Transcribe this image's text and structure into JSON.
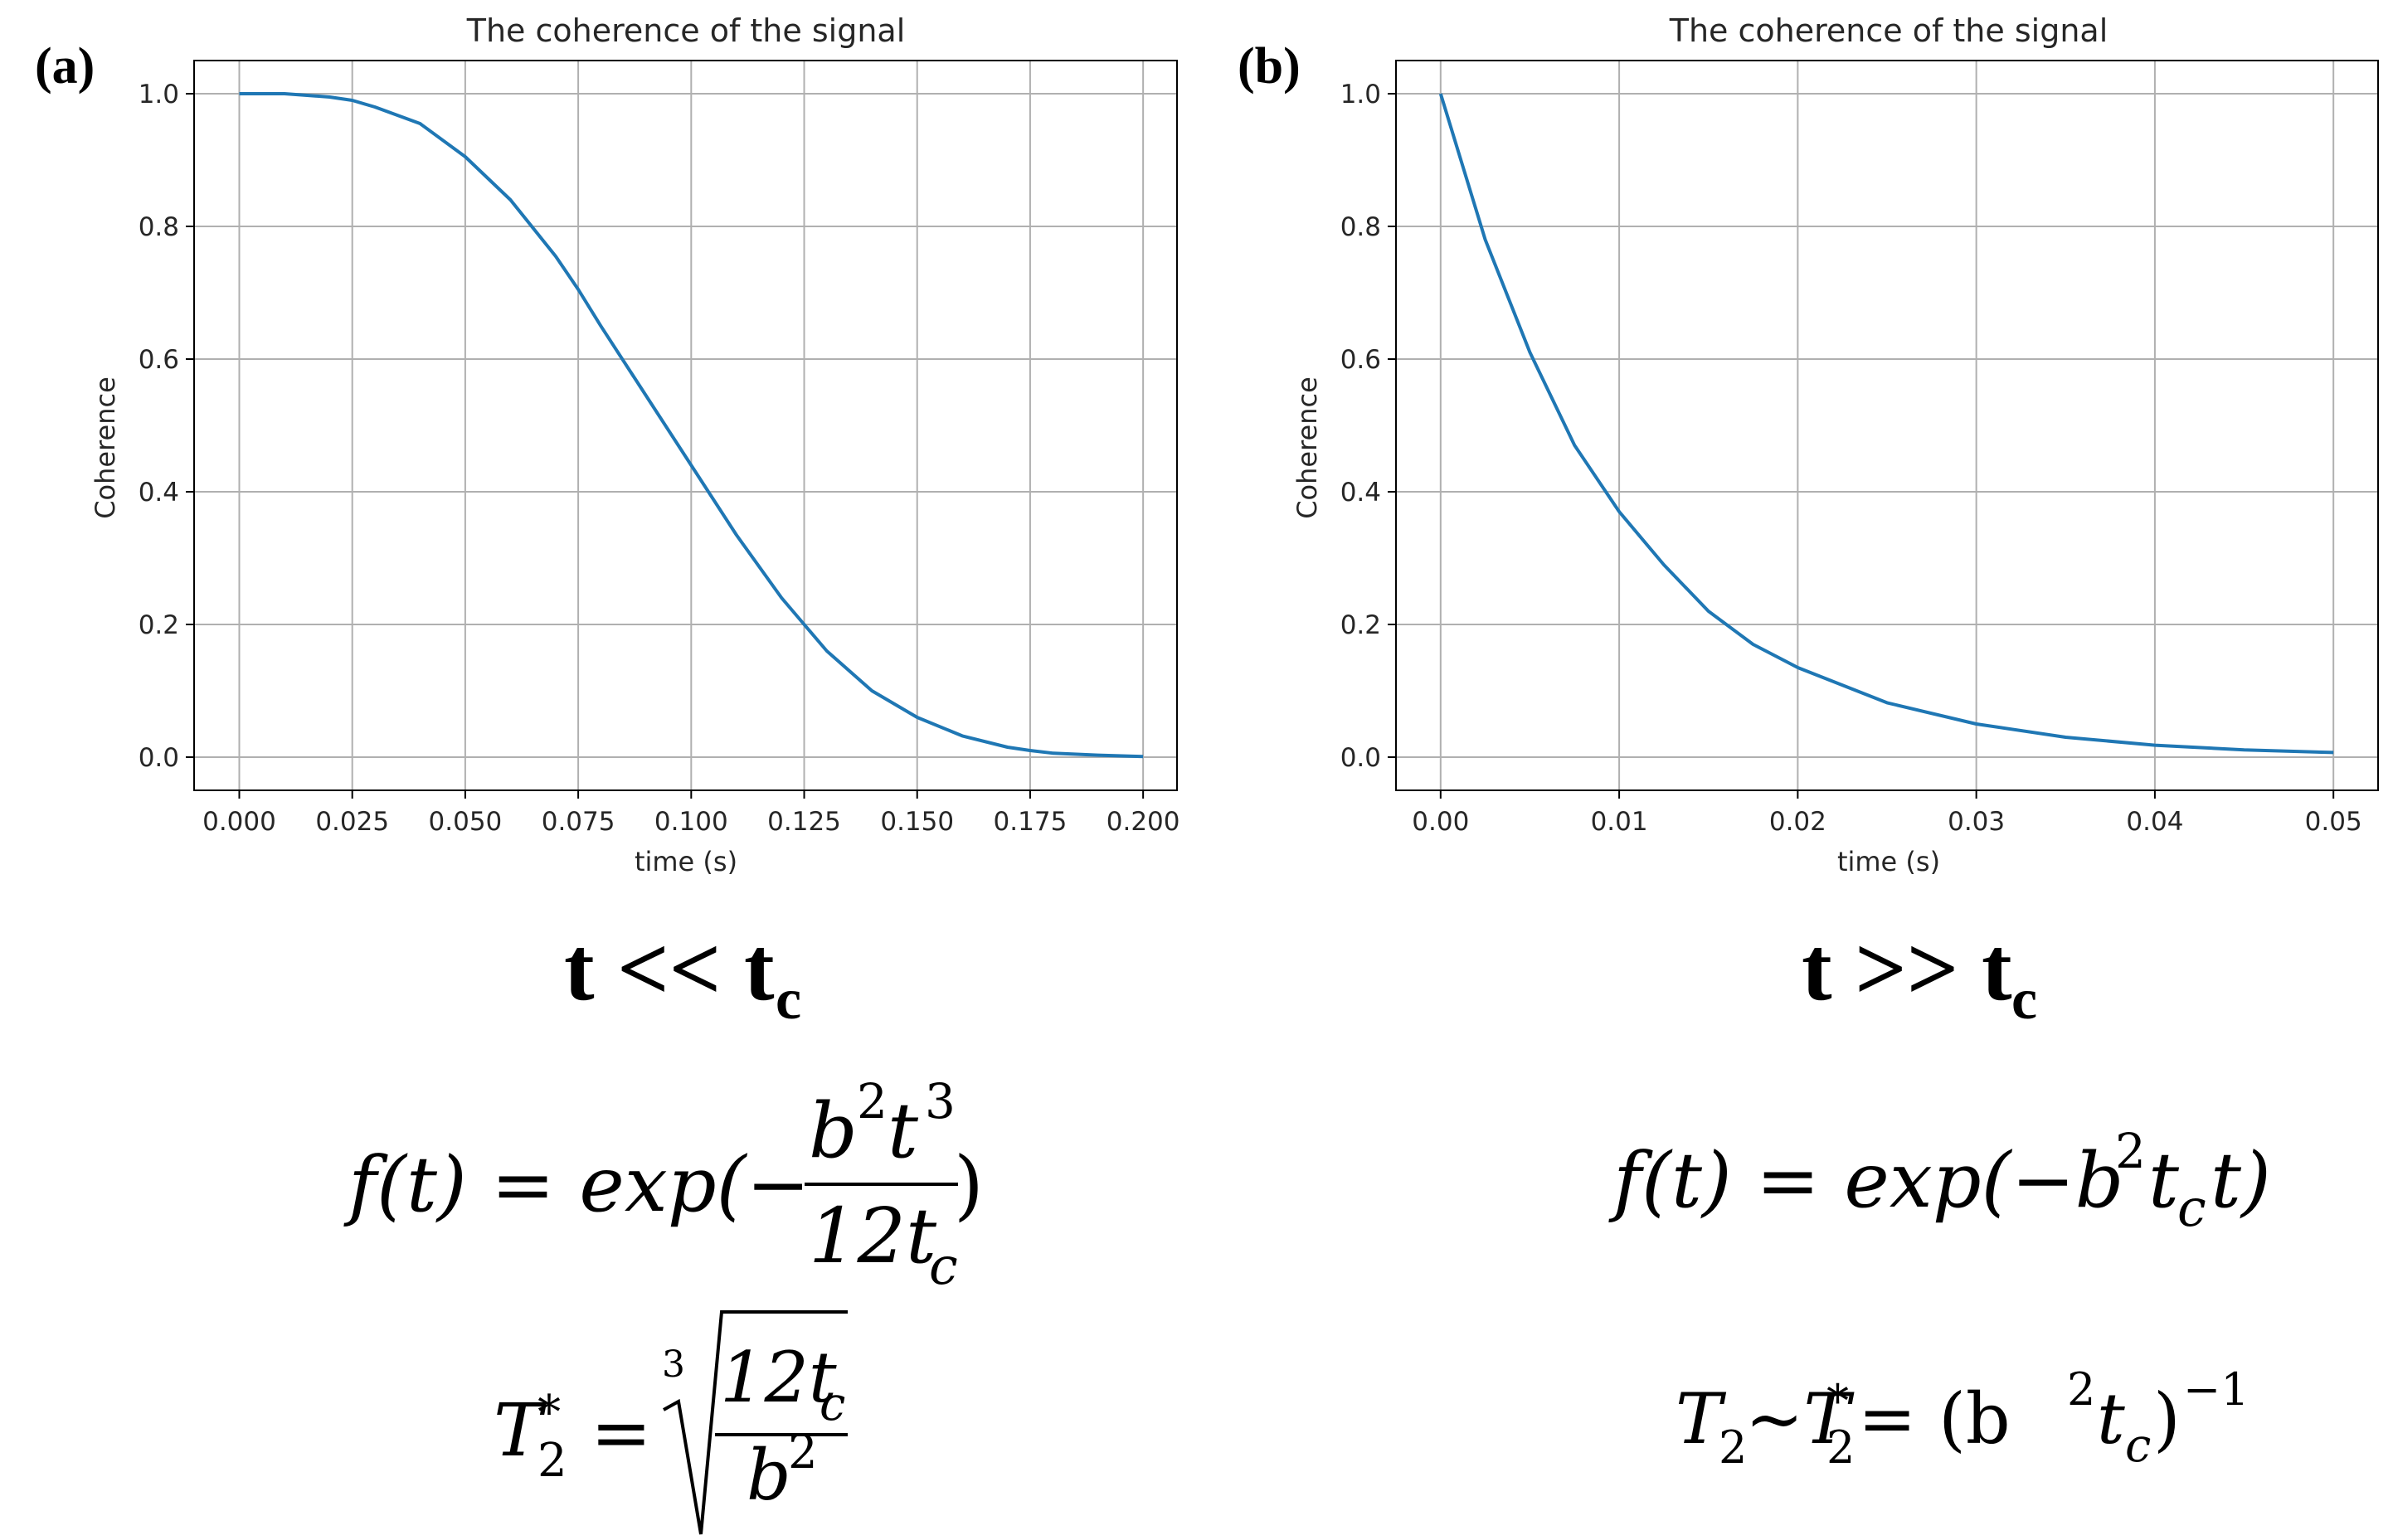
{
  "chart_data": [
    {
      "type": "line",
      "panel_letter": "(a)",
      "title": "The coherence of the signal",
      "xlabel": "time (s)",
      "ylabel": "Coherence",
      "xlim": [
        -0.01,
        0.2075
      ],
      "ylim": [
        -0.05,
        1.05
      ],
      "xticks": [
        "0.000",
        "0.025",
        "0.050",
        "0.075",
        "0.100",
        "0.125",
        "0.150",
        "0.175",
        "0.200"
      ],
      "yticks": [
        "0.0",
        "0.2",
        "0.4",
        "0.6",
        "0.8",
        "1.0"
      ],
      "grid": true,
      "series": [
        {
          "color": "#1f77b4",
          "x": [
            0.0,
            0.01,
            0.02,
            0.025,
            0.03,
            0.04,
            0.05,
            0.06,
            0.07,
            0.075,
            0.08,
            0.09,
            0.1,
            0.11,
            0.12,
            0.125,
            0.13,
            0.14,
            0.15,
            0.16,
            0.17,
            0.175,
            0.18,
            0.19,
            0.2
          ],
          "y": [
            1.0,
            1.0,
            0.995,
            0.99,
            0.98,
            0.955,
            0.905,
            0.84,
            0.755,
            0.705,
            0.65,
            0.545,
            0.44,
            0.335,
            0.24,
            0.2,
            0.16,
            0.1,
            0.06,
            0.032,
            0.015,
            0.01,
            0.006,
            0.003,
            0.001
          ]
        }
      ]
    },
    {
      "type": "line",
      "panel_letter": "(b)",
      "title": "The coherence of the signal",
      "xlabel": "time (s)",
      "ylabel": "Coherence",
      "xlim": [
        -0.0025,
        0.0525
      ],
      "ylim": [
        -0.05,
        1.05
      ],
      "xticks": [
        "0.00",
        "0.01",
        "0.02",
        "0.03",
        "0.04",
        "0.05"
      ],
      "yticks": [
        "0.0",
        "0.2",
        "0.4",
        "0.6",
        "0.8",
        "1.0"
      ],
      "grid": true,
      "series": [
        {
          "color": "#1f77b4",
          "x": [
            0.0,
            0.0025,
            0.005,
            0.0075,
            0.01,
            0.0125,
            0.015,
            0.0175,
            0.02,
            0.025,
            0.03,
            0.035,
            0.04,
            0.045,
            0.05
          ],
          "y": [
            1.0,
            0.78,
            0.61,
            0.47,
            0.37,
            0.29,
            0.22,
            0.17,
            0.135,
            0.082,
            0.05,
            0.03,
            0.018,
            0.011,
            0.007
          ]
        }
      ]
    }
  ],
  "regimes": {
    "left": {
      "main": "t << t",
      "sub": "c"
    },
    "right": {
      "main": "t >> t",
      "sub": "c"
    }
  },
  "equations": {
    "left_f": {
      "lhs": "f(t) = exp(−",
      "num_b": "b",
      "num_b_exp": "2",
      "num_t": "t",
      "num_t_exp": "3",
      "den": "12t",
      "den_sub": "c",
      "close": ")"
    },
    "left_T": {
      "T": "T",
      "T_sub": "2",
      "T_sup": "*",
      "eq": "=",
      "root_index": "3",
      "num": "12t",
      "num_sub": "c",
      "den": "b",
      "den_sup": "2"
    },
    "right_f": {
      "lhs": "f(t) = exp(−b",
      "sup": "2",
      "t": "t",
      "sub": "c",
      "tail": "t)"
    },
    "right_T": {
      "T2": "T",
      "T2_sub": "2",
      "tilde": "~T",
      "T_sub": "2",
      "T_sup": "*",
      "eq": " = (b",
      "b_sup": "2",
      "t": "t",
      "t_sub": "c",
      "close": ")",
      "exp": "−1"
    }
  }
}
